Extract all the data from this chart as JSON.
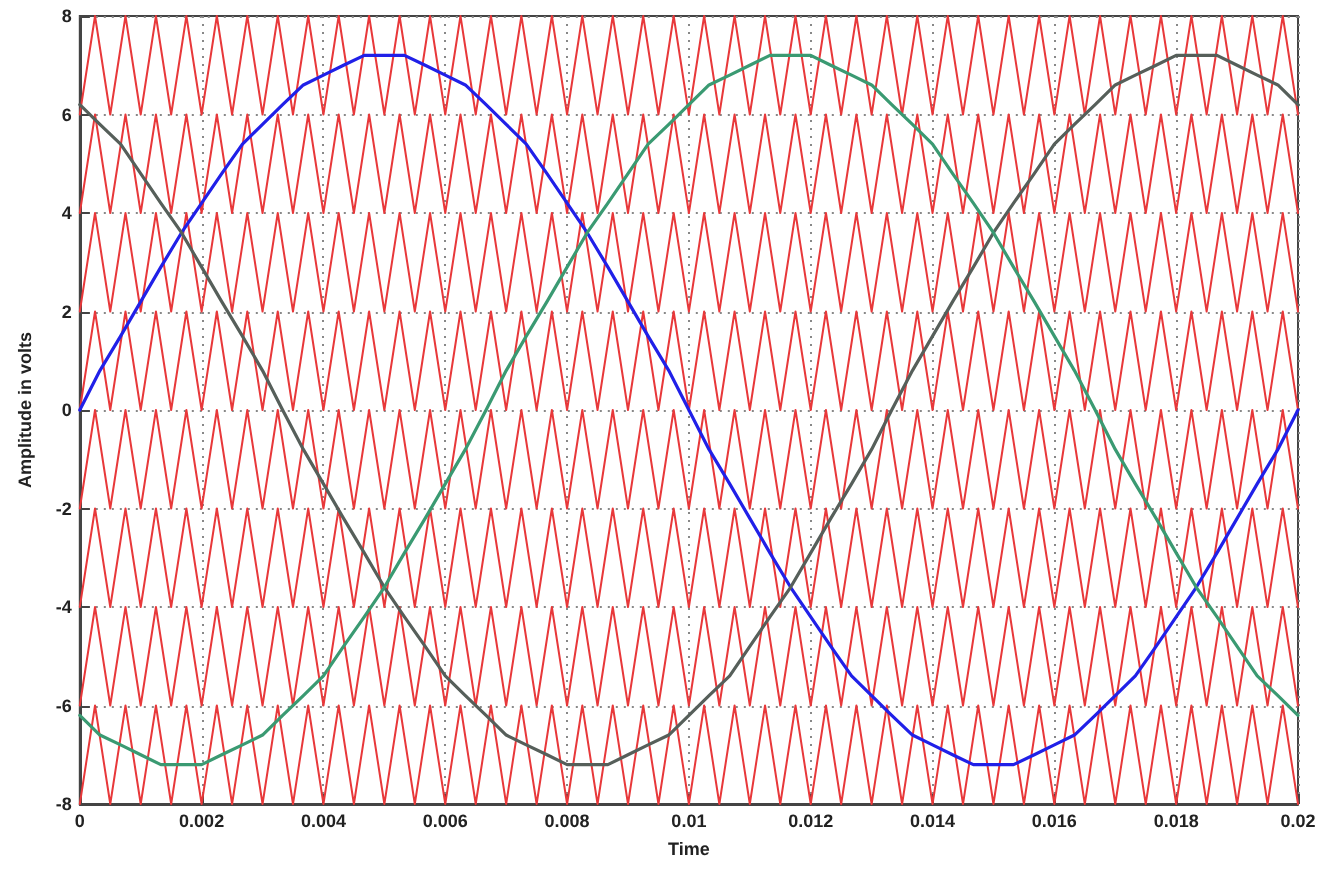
{
  "chart_data": {
    "type": "line",
    "xlabel": "Time",
    "ylabel": "Amplitude in volts",
    "xlim": [
      0,
      0.02
    ],
    "xticks": [
      0,
      0.002,
      0.004,
      0.006,
      0.008,
      0.01,
      0.012,
      0.014,
      0.016,
      0.018,
      0.02
    ],
    "ylim": [
      -8,
      8
    ],
    "yticks": [
      -8,
      -6,
      -4,
      -2,
      0,
      2,
      4,
      6,
      8
    ],
    "grid": true,
    "marker": "none",
    "line_style": "solid",
    "x": [
      0,
      0.00025,
      0.0005,
      0.00075,
      0.001,
      0.00125,
      0.0015,
      0.00175,
      0.002,
      0.00225,
      0.0025,
      0.00275,
      0.003,
      0.00325,
      0.0035,
      0.00375,
      0.004,
      0.00425,
      0.0045,
      0.00475,
      0.005,
      0.00525,
      0.0055,
      0.00575,
      0.006,
      0.00625,
      0.0065,
      0.00675,
      0.007,
      0.00725,
      0.0075,
      0.00775,
      0.008,
      0.00825,
      0.0085,
      0.00875,
      0.009,
      0.00925,
      0.0095,
      0.00975,
      0.01,
      0.01025,
      0.0105,
      0.01075,
      0.011,
      0.01125,
      0.0115,
      0.01175,
      0.012,
      0.01225,
      0.0125,
      0.01275,
      0.013,
      0.01325,
      0.0135,
      0.01375,
      0.014,
      0.01425,
      0.0145,
      0.01475,
      0.015,
      0.01525,
      0.0155,
      0.01575,
      0.016,
      0.01625,
      0.0165,
      0.01675,
      0.017,
      0.01725,
      0.0175,
      0.01775,
      0.018,
      0.01825,
      0.0185,
      0.01875,
      0.019,
      0.01925,
      0.0195,
      0.01975,
      0.02
    ],
    "series": [
      {
        "color": "#e8383a",
        "values": [
          6,
          8,
          6,
          8,
          6,
          8,
          6,
          8,
          6,
          8,
          6,
          8,
          6,
          8,
          6,
          8,
          6,
          8,
          6,
          8,
          6,
          8,
          6,
          8,
          6,
          8,
          6,
          8,
          6,
          8,
          6,
          8,
          6,
          8,
          6,
          8,
          6,
          8,
          6,
          8,
          6,
          8,
          6,
          8,
          6,
          8,
          6,
          8,
          6,
          8,
          6,
          8,
          6,
          8,
          6,
          8,
          6,
          8,
          6,
          8,
          6,
          8,
          6,
          8,
          6,
          8,
          6,
          8,
          6,
          8,
          6,
          8,
          6,
          8,
          6,
          8,
          6,
          8,
          6,
          8,
          6
        ]
      },
      {
        "color": "#e8383a",
        "values": [
          4,
          6,
          4,
          6,
          4,
          6,
          4,
          6,
          4,
          6,
          4,
          6,
          4,
          6,
          4,
          6,
          4,
          6,
          4,
          6,
          4,
          6,
          4,
          6,
          4,
          6,
          4,
          6,
          4,
          6,
          4,
          6,
          4,
          6,
          4,
          6,
          4,
          6,
          4,
          6,
          4,
          6,
          4,
          6,
          4,
          6,
          4,
          6,
          4,
          6,
          4,
          6,
          4,
          6,
          4,
          6,
          4,
          6,
          4,
          6,
          4,
          6,
          4,
          6,
          4,
          6,
          4,
          6,
          4,
          6,
          4,
          6,
          4,
          6,
          4,
          6,
          4,
          6,
          4,
          6,
          4
        ]
      },
      {
        "color": "#e8383a",
        "values": [
          2,
          4,
          2,
          4,
          2,
          4,
          2,
          4,
          2,
          4,
          2,
          4,
          2,
          4,
          2,
          4,
          2,
          4,
          2,
          4,
          2,
          4,
          2,
          4,
          2,
          4,
          2,
          4,
          2,
          4,
          2,
          4,
          2,
          4,
          2,
          4,
          2,
          4,
          2,
          4,
          2,
          4,
          2,
          4,
          2,
          4,
          2,
          4,
          2,
          4,
          2,
          4,
          2,
          4,
          2,
          4,
          2,
          4,
          2,
          4,
          2,
          4,
          2,
          4,
          2,
          4,
          2,
          4,
          2,
          4,
          2,
          4,
          2,
          4,
          2,
          4,
          2,
          4,
          2,
          4,
          2
        ]
      },
      {
        "color": "#e8383a",
        "values": [
          0,
          2,
          0,
          2,
          0,
          2,
          0,
          2,
          0,
          2,
          0,
          2,
          0,
          2,
          0,
          2,
          0,
          2,
          0,
          2,
          0,
          2,
          0,
          2,
          0,
          2,
          0,
          2,
          0,
          2,
          0,
          2,
          0,
          2,
          0,
          2,
          0,
          2,
          0,
          2,
          0,
          2,
          0,
          2,
          0,
          2,
          0,
          2,
          0,
          2,
          0,
          2,
          0,
          2,
          0,
          2,
          0,
          2,
          0,
          2,
          0,
          2,
          0,
          2,
          0,
          2,
          0,
          2,
          0,
          2,
          0,
          2,
          0,
          2,
          0,
          2,
          0,
          2,
          0,
          2,
          0
        ]
      },
      {
        "color": "#e8383a",
        "values": [
          -2,
          0,
          -2,
          0,
          -2,
          0,
          -2,
          0,
          -2,
          0,
          -2,
          0,
          -2,
          0,
          -2,
          0,
          -2,
          0,
          -2,
          0,
          -2,
          0,
          -2,
          0,
          -2,
          0,
          -2,
          0,
          -2,
          0,
          -2,
          0,
          -2,
          0,
          -2,
          0,
          -2,
          0,
          -2,
          0,
          -2,
          0,
          -2,
          0,
          -2,
          0,
          -2,
          0,
          -2,
          0,
          -2,
          0,
          -2,
          0,
          -2,
          0,
          -2,
          0,
          -2,
          0,
          -2,
          0,
          -2,
          0,
          -2,
          0,
          -2,
          0,
          -2,
          0,
          -2,
          0,
          -2,
          0,
          -2,
          0,
          -2,
          0,
          -2,
          0,
          -2
        ]
      },
      {
        "color": "#e8383a",
        "values": [
          -4,
          -2,
          -4,
          -2,
          -4,
          -2,
          -4,
          -2,
          -4,
          -2,
          -4,
          -2,
          -4,
          -2,
          -4,
          -2,
          -4,
          -2,
          -4,
          -2,
          -4,
          -2,
          -4,
          -2,
          -4,
          -2,
          -4,
          -2,
          -4,
          -2,
          -4,
          -2,
          -4,
          -2,
          -4,
          -2,
          -4,
          -2,
          -4,
          -2,
          -4,
          -2,
          -4,
          -2,
          -4,
          -2,
          -4,
          -2,
          -4,
          -2,
          -4,
          -2,
          -4,
          -2,
          -4,
          -2,
          -4,
          -2,
          -4,
          -2,
          -4,
          -2,
          -4,
          -2,
          -4,
          -2,
          -4,
          -2,
          -4,
          -2,
          -4,
          -2,
          -4,
          -2,
          -4,
          -2,
          -4,
          -2,
          -4,
          -2,
          -4
        ]
      },
      {
        "color": "#e8383a",
        "values": [
          -6,
          -4,
          -6,
          -4,
          -6,
          -4,
          -6,
          -4,
          -6,
          -4,
          -6,
          -4,
          -6,
          -4,
          -6,
          -4,
          -6,
          -4,
          -6,
          -4,
          -6,
          -4,
          -6,
          -4,
          -6,
          -4,
          -6,
          -4,
          -6,
          -4,
          -6,
          -4,
          -6,
          -4,
          -6,
          -4,
          -6,
          -4,
          -6,
          -4,
          -6,
          -4,
          -6,
          -4,
          -6,
          -4,
          -6,
          -4,
          -6,
          -4,
          -6,
          -4,
          -6,
          -4,
          -6,
          -4,
          -6,
          -4,
          -6,
          -4,
          -6,
          -4,
          -6,
          -4,
          -6,
          -4,
          -6,
          -4,
          -6,
          -4,
          -6,
          -4,
          -6,
          -4,
          -6,
          -4,
          -6,
          -4,
          -6,
          -4,
          -6
        ]
      },
      {
        "color": "#e8383a",
        "values": [
          -8,
          -6,
          -8,
          -6,
          -8,
          -6,
          -8,
          -6,
          -8,
          -6,
          -8,
          -6,
          -8,
          -6,
          -8,
          -6,
          -8,
          -6,
          -8,
          -6,
          -8,
          -6,
          -8,
          -6,
          -8,
          -6,
          -8,
          -6,
          -8,
          -6,
          -8,
          -6,
          -8,
          -6,
          -8,
          -6,
          -8,
          -6,
          -8,
          -6,
          -8,
          -6,
          -8,
          -6,
          -8,
          -6,
          -8,
          -6,
          -8,
          -6,
          -8,
          -6,
          -8,
          -6,
          -8,
          -6,
          -8,
          -6,
          -8,
          -6,
          -8,
          -6,
          -8,
          -6,
          -8,
          -6,
          -8,
          -6,
          -8,
          -6,
          -8,
          -6,
          -8,
          -6,
          -8,
          -6,
          -8,
          -6,
          -8,
          -6,
          -8
        ]
      },
      {
        "color": "#2020e8",
        "x": [
          0,
          0.00033,
          0.00067,
          0.001,
          0.00133,
          0.00167,
          0.002,
          0.00233,
          0.00267,
          0.003,
          0.00333,
          0.00367,
          0.004,
          0.00433,
          0.00467,
          0.005,
          0.00533,
          0.00567,
          0.006,
          0.00633,
          0.00667,
          0.007,
          0.00733,
          0.00767,
          0.008,
          0.00833,
          0.00867,
          0.009,
          0.00933,
          0.00967,
          0.01,
          0.01033,
          0.01067,
          0.011,
          0.01133,
          0.01167,
          0.012,
          0.01233,
          0.01267,
          0.013,
          0.01333,
          0.01367,
          0.014,
          0.01433,
          0.01467,
          0.015,
          0.01533,
          0.01567,
          0.016,
          0.01633,
          0.01667,
          0.017,
          0.01733,
          0.01767,
          0.018,
          0.01833,
          0.01867,
          0.019,
          0.01933,
          0.01967,
          0.02
        ],
        "values": [
          0,
          0.8,
          1.5,
          2.2,
          2.9,
          3.6,
          4.2,
          4.8,
          5.4,
          5.8,
          6.2,
          6.6,
          6.8,
          7.0,
          7.2,
          7.2,
          7.2,
          7.0,
          6.8,
          6.6,
          6.2,
          5.8,
          5.4,
          4.8,
          4.2,
          3.6,
          2.9,
          2.2,
          1.5,
          0.8,
          0,
          -0.8,
          -1.5,
          -2.2,
          -2.9,
          -3.6,
          -4.2,
          -4.8,
          -5.4,
          -5.8,
          -6.2,
          -6.6,
          -6.8,
          -7.0,
          -7.2,
          -7.2,
          -7.2,
          -7.0,
          -6.8,
          -6.6,
          -6.2,
          -5.8,
          -5.4,
          -4.8,
          -4.2,
          -3.6,
          -2.9,
          -2.2,
          -1.5,
          -0.8,
          0
        ]
      },
      {
        "color": "#565f5a",
        "x": [
          0,
          0.00033,
          0.00067,
          0.001,
          0.00133,
          0.00167,
          0.002,
          0.00233,
          0.00267,
          0.003,
          0.00333,
          0.00367,
          0.004,
          0.00433,
          0.00467,
          0.005,
          0.00533,
          0.00567,
          0.006,
          0.00633,
          0.00667,
          0.007,
          0.00733,
          0.00767,
          0.008,
          0.00833,
          0.00867,
          0.009,
          0.00933,
          0.00967,
          0.01,
          0.01033,
          0.01067,
          0.011,
          0.01133,
          0.01167,
          0.012,
          0.01233,
          0.01267,
          0.013,
          0.01333,
          0.01367,
          0.014,
          0.01433,
          0.01467,
          0.015,
          0.01533,
          0.01567,
          0.016,
          0.01633,
          0.01667,
          0.017,
          0.01733,
          0.01767,
          0.018,
          0.01833,
          0.01867,
          0.019,
          0.01933,
          0.01967,
          0.02
        ],
        "values": [
          6.2,
          5.8,
          5.4,
          4.8,
          4.2,
          3.6,
          2.9,
          2.2,
          1.5,
          0.8,
          0,
          -0.8,
          -1.5,
          -2.2,
          -2.9,
          -3.6,
          -4.2,
          -4.8,
          -5.4,
          -5.8,
          -6.2,
          -6.6,
          -6.8,
          -7.0,
          -7.2,
          -7.2,
          -7.2,
          -7.0,
          -6.8,
          -6.6,
          -6.2,
          -5.8,
          -5.4,
          -4.8,
          -4.2,
          -3.6,
          -2.9,
          -2.2,
          -1.5,
          -0.8,
          0,
          0.8,
          1.5,
          2.2,
          2.9,
          3.6,
          4.2,
          4.8,
          5.4,
          5.8,
          6.2,
          6.6,
          6.8,
          7.0,
          7.2,
          7.2,
          7.2,
          7.0,
          6.8,
          6.6,
          6.2
        ]
      },
      {
        "color": "#3a9a72",
        "x": [
          0,
          0.00033,
          0.00067,
          0.001,
          0.00133,
          0.00167,
          0.002,
          0.00233,
          0.00267,
          0.003,
          0.00333,
          0.00367,
          0.004,
          0.00433,
          0.00467,
          0.005,
          0.00533,
          0.00567,
          0.006,
          0.00633,
          0.00667,
          0.007,
          0.00733,
          0.00767,
          0.008,
          0.00833,
          0.00867,
          0.009,
          0.00933,
          0.00967,
          0.01,
          0.01033,
          0.01067,
          0.011,
          0.01133,
          0.01167,
          0.012,
          0.01233,
          0.01267,
          0.013,
          0.01333,
          0.01367,
          0.014,
          0.01433,
          0.01467,
          0.015,
          0.01533,
          0.01567,
          0.016,
          0.01633,
          0.01667,
          0.017,
          0.01733,
          0.01767,
          0.018,
          0.01833,
          0.01867,
          0.019,
          0.01933,
          0.01967,
          0.02
        ],
        "values": [
          -6.2,
          -6.6,
          -6.8,
          -7.0,
          -7.2,
          -7.2,
          -7.2,
          -7.0,
          -6.8,
          -6.6,
          -6.2,
          -5.8,
          -5.4,
          -4.8,
          -4.2,
          -3.6,
          -2.9,
          -2.2,
          -1.5,
          -0.8,
          0,
          0.8,
          1.5,
          2.2,
          2.9,
          3.6,
          4.2,
          4.8,
          5.4,
          5.8,
          6.2,
          6.6,
          6.8,
          7.0,
          7.2,
          7.2,
          7.2,
          7.0,
          6.8,
          6.6,
          6.2,
          5.8,
          5.4,
          4.8,
          4.2,
          3.6,
          2.9,
          2.2,
          1.5,
          0.8,
          0,
          -0.8,
          -1.5,
          -2.2,
          -2.9,
          -3.6,
          -4.2,
          -4.8,
          -5.4,
          -5.8,
          -6.2
        ]
      }
    ]
  }
}
